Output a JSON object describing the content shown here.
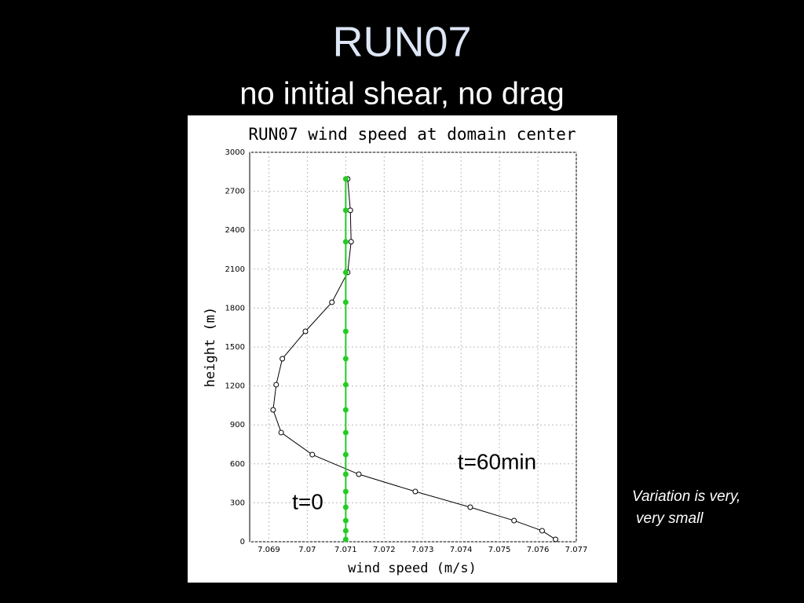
{
  "slide": {
    "title": "RUN07",
    "subtitle": "no initial shear, no drag",
    "note": [
      "Variation is very,",
      "very small"
    ]
  },
  "chart_data": {
    "type": "line",
    "title": "RUN07 wind speed at domain center",
    "x_label": "wind speed (m/s)",
    "y_label": "height (m)",
    "y": [
      18,
      85,
      163,
      266,
      387,
      520,
      671,
      841,
      1016,
      1210,
      1410,
      1621,
      1845,
      2075,
      2311,
      2553,
      2795
    ],
    "series": [
      {
        "name": "t=60min",
        "color": "#000000",
        "values": [
          7.07646,
          7.07611,
          7.07538,
          7.07424,
          7.07281,
          7.07134,
          7.07013,
          7.06932,
          7.06911,
          7.06919,
          7.06935,
          7.06995,
          7.07064,
          7.07105,
          7.07114,
          7.07112,
          7.07105
        ]
      },
      {
        "name": "t=0",
        "color": "#22cc22",
        "values": [
          7.071,
          7.071,
          7.071,
          7.071,
          7.071,
          7.071,
          7.071,
          7.071,
          7.071,
          7.071,
          7.071,
          7.071,
          7.071,
          7.071,
          7.071,
          7.071,
          7.071
        ]
      }
    ],
    "xlim": [
      7.0685,
      7.077
    ],
    "xticks": [
      7.069,
      7.07,
      7.071,
      7.072,
      7.073,
      7.074,
      7.075,
      7.076,
      7.077
    ],
    "ylim": [
      0,
      3000
    ],
    "yticks": [
      0,
      300,
      600,
      900,
      1200,
      1500,
      1800,
      2100,
      2400,
      2700,
      3000
    ],
    "grid": true
  }
}
